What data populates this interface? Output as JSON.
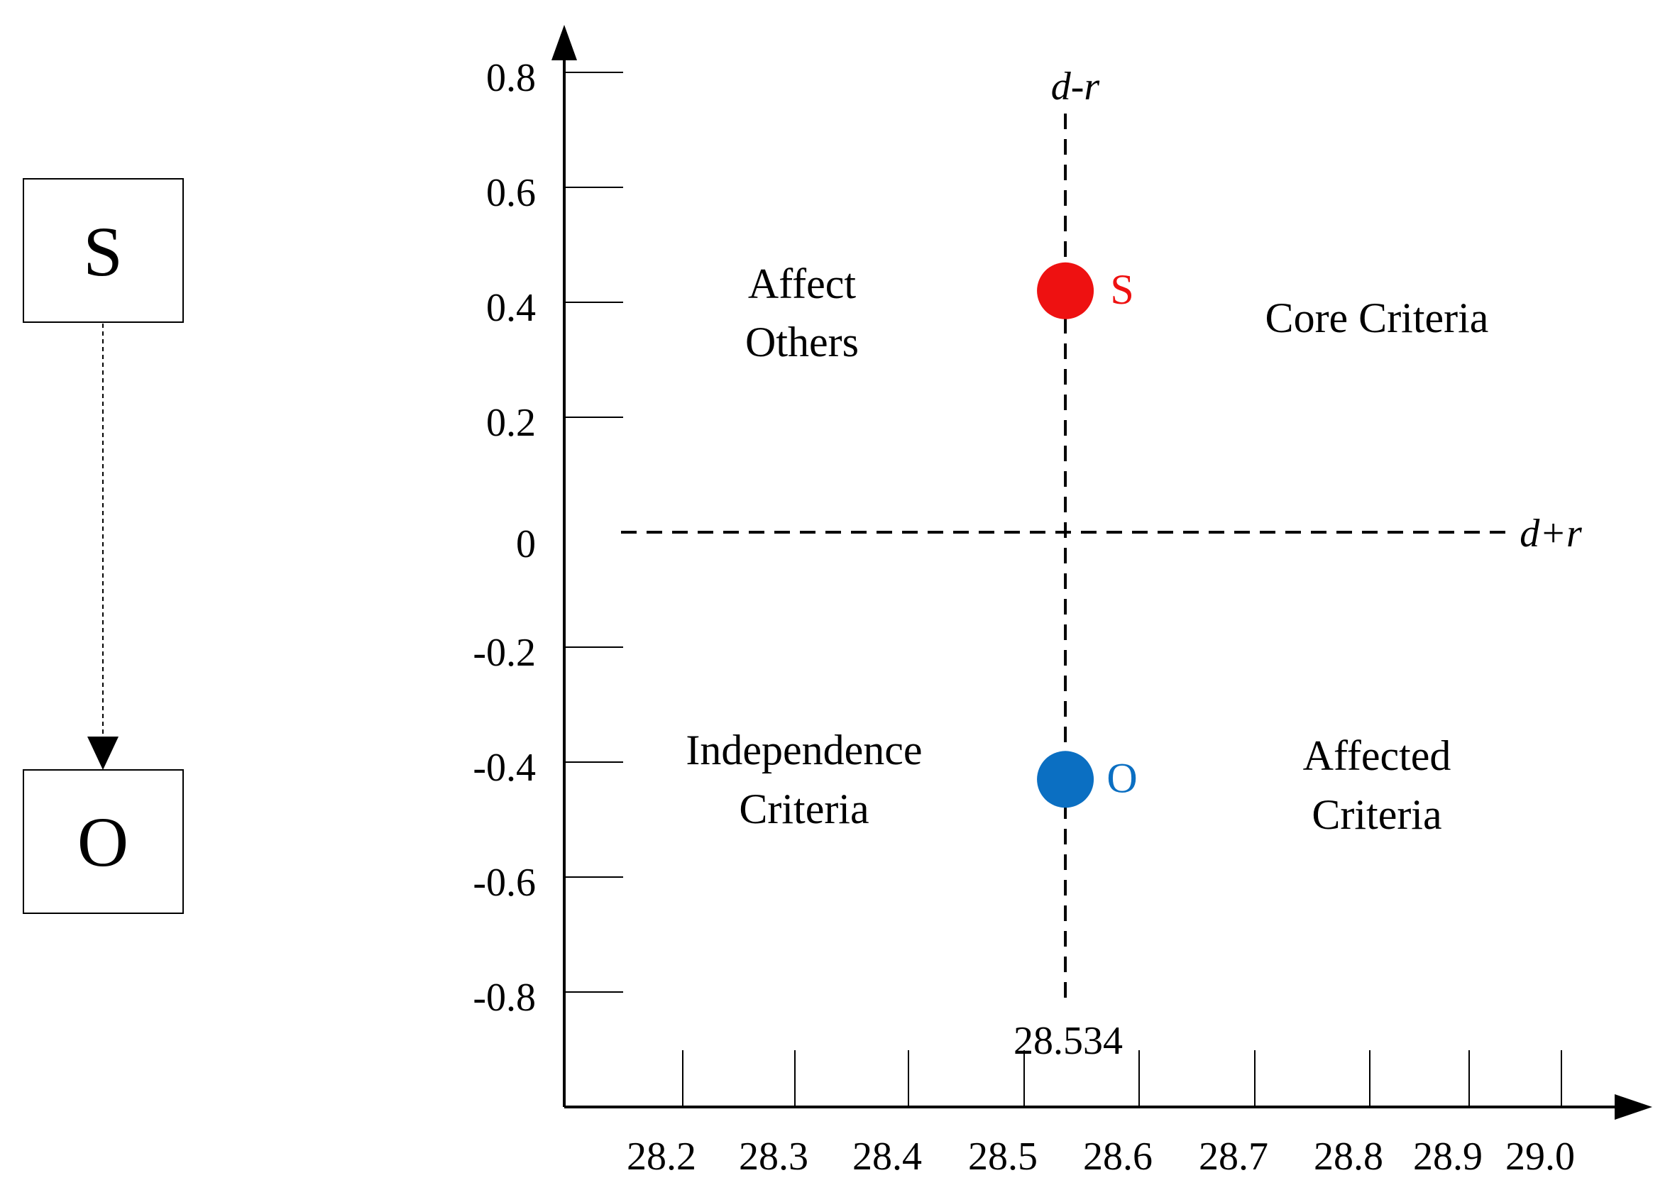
{
  "diagram": {
    "source_node": "S",
    "target_node": "O"
  },
  "chart_data": {
    "type": "scatter",
    "title": "",
    "xlabel": "d+r",
    "ylabel": "d-r",
    "x_ticks": [
      "28.2",
      "28.3",
      "28.4",
      "28.5",
      "28.6",
      "28.7",
      "28.8",
      "28.9",
      "29.0"
    ],
    "y_ticks": [
      "0.8",
      "0.6",
      "0.4",
      "0.2",
      "0",
      "-0.2",
      "-0.4",
      "-0.6",
      "-0.8"
    ],
    "threshold_x": 28.534,
    "threshold_x_label": "28.534",
    "threshold_y": 0,
    "points": [
      {
        "label": "S",
        "x": 28.534,
        "y": 0.42,
        "color": "#ee1111"
      },
      {
        "label": "O",
        "x": 28.534,
        "y": -0.43,
        "color": "#0b6fc2"
      }
    ],
    "quadrants": {
      "top_left": [
        "Affect",
        "Others"
      ],
      "top_right": [
        "Core Criteria"
      ],
      "bottom_left": [
        "Independence",
        "Criteria"
      ],
      "bottom_right": [
        "Affected",
        "Criteria"
      ]
    }
  }
}
